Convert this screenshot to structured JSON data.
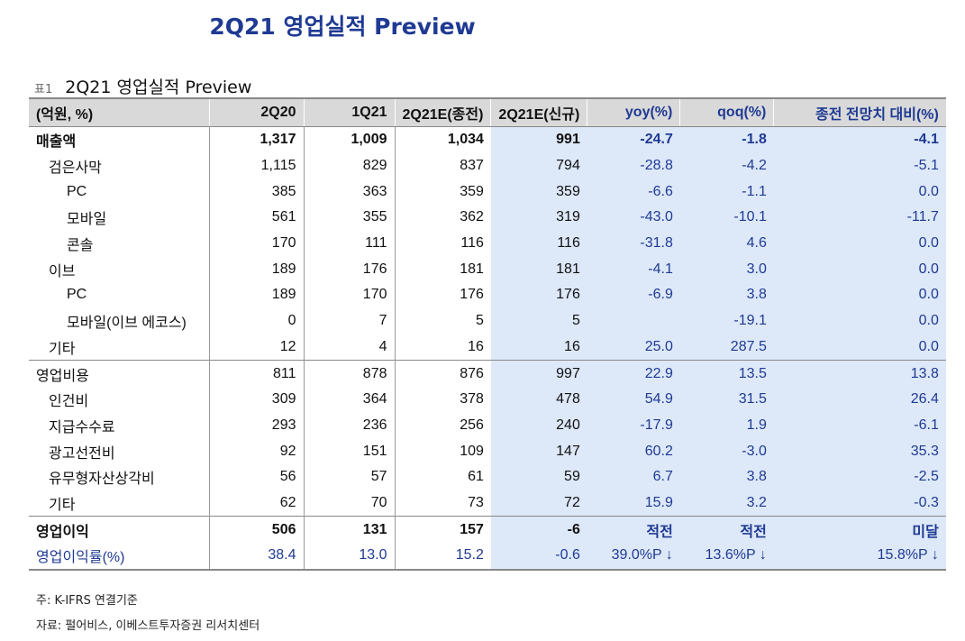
{
  "title": "2Q21 영업실적 Preview",
  "caption": {
    "label": "표1",
    "text": "2Q21 영업실적 Preview"
  },
  "columns": [
    "(억원, %)",
    "2Q20",
    "1Q21",
    "2Q21E(종전)",
    "2Q21E(신규)",
    "yoy(%)",
    "qoq(%)",
    "종전 전망치 대비(%)"
  ],
  "rows": [
    {
      "label": "매출액",
      "indent": 0,
      "values": [
        "1,317",
        "1,009",
        "1,034",
        "991",
        "-24.7",
        "-1.8",
        "-4.1"
      ]
    },
    {
      "label": "검은사막",
      "indent": 1,
      "values": [
        "1,115",
        "829",
        "837",
        "794",
        "-28.8",
        "-4.2",
        "-5.1"
      ]
    },
    {
      "label": "PC",
      "indent": 2,
      "values": [
        "385",
        "363",
        "359",
        "359",
        "-6.6",
        "-1.1",
        "0.0"
      ]
    },
    {
      "label": "모바일",
      "indent": 2,
      "values": [
        "561",
        "355",
        "362",
        "319",
        "-43.0",
        "-10.1",
        "-11.7"
      ]
    },
    {
      "label": "콘솔",
      "indent": 2,
      "values": [
        "170",
        "111",
        "116",
        "116",
        "-31.8",
        "4.6",
        "0.0"
      ]
    },
    {
      "label": "이브",
      "indent": 1,
      "values": [
        "189",
        "176",
        "181",
        "181",
        "-4.1",
        "3.0",
        "0.0"
      ]
    },
    {
      "label": "PC",
      "indent": 2,
      "values": [
        "189",
        "170",
        "176",
        "176",
        "-6.9",
        "3.8",
        "0.0"
      ]
    },
    {
      "label": "모바일(이브 에코스)",
      "indent": 2,
      "values": [
        "0",
        "7",
        "5",
        "5",
        "",
        "-19.1",
        "0.0"
      ]
    },
    {
      "label": "기타",
      "indent": 1,
      "values": [
        "12",
        "4",
        "16",
        "16",
        "25.0",
        "287.5",
        "0.0"
      ]
    },
    {
      "label": "영업비용",
      "indent": 0,
      "values": [
        "811",
        "878",
        "876",
        "997",
        "22.9",
        "13.5",
        "13.8"
      ]
    },
    {
      "label": "인건비",
      "indent": 1,
      "values": [
        "309",
        "364",
        "378",
        "478",
        "54.9",
        "31.5",
        "26.4"
      ]
    },
    {
      "label": "지급수수료",
      "indent": 1,
      "values": [
        "293",
        "236",
        "256",
        "240",
        "-17.9",
        "1.9",
        "-6.1"
      ]
    },
    {
      "label": "광고선전비",
      "indent": 1,
      "values": [
        "92",
        "151",
        "109",
        "147",
        "60.2",
        "-3.0",
        "35.3"
      ]
    },
    {
      "label": "유무형자산상각비",
      "indent": 1,
      "values": [
        "56",
        "57",
        "61",
        "59",
        "6.7",
        "3.8",
        "-2.5"
      ]
    },
    {
      "label": "기타",
      "indent": 1,
      "values": [
        "62",
        "70",
        "73",
        "72",
        "15.9",
        "3.2",
        "-0.3"
      ]
    },
    {
      "label": "영업이익",
      "indent": 0,
      "values": [
        "506",
        "131",
        "157",
        "-6",
        "적전",
        "적전",
        "미달"
      ]
    },
    {
      "label": "영업이익률(%)",
      "indent": 0,
      "values": [
        "38.4",
        "13.0",
        "15.2",
        "-0.6",
        "39.0%P ↓",
        "13.6%P ↓",
        "15.8%P ↓"
      ]
    }
  ],
  "notes": [
    "주: K-IFRS 연결기준",
    "자료: 펄어비스, 이베스트투자증권 리서치센터"
  ],
  "colors": {
    "accent": "#1f3a93",
    "highlight": "#dde8f9",
    "header": "#d9d9d9"
  }
}
